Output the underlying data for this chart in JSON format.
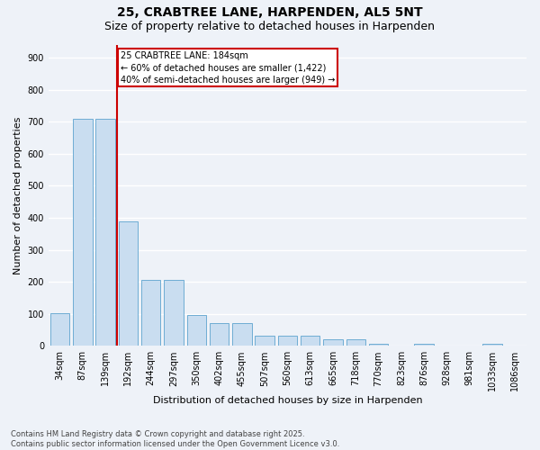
{
  "title1": "25, CRABTREE LANE, HARPENDEN, AL5 5NT",
  "title2": "Size of property relative to detached houses in Harpenden",
  "xlabel": "Distribution of detached houses by size in Harpenden",
  "ylabel": "Number of detached properties",
  "categories": [
    "34sqm",
    "87sqm",
    "139sqm",
    "192sqm",
    "244sqm",
    "297sqm",
    "350sqm",
    "402sqm",
    "455sqm",
    "507sqm",
    "560sqm",
    "613sqm",
    "665sqm",
    "718sqm",
    "770sqm",
    "823sqm",
    "876sqm",
    "928sqm",
    "981sqm",
    "1033sqm",
    "1086sqm"
  ],
  "values": [
    103,
    710,
    710,
    390,
    207,
    207,
    97,
    70,
    70,
    32,
    32,
    32,
    20,
    20,
    7,
    0,
    7,
    0,
    0,
    6,
    0
  ],
  "bar_color": "#c9ddf0",
  "bar_edge_color": "#6eadd4",
  "vline_color": "#cc0000",
  "vline_x": 2.5,
  "annotation_text": "25 CRABTREE LANE: 184sqm\n← 60% of detached houses are smaller (1,422)\n40% of semi-detached houses are larger (949) →",
  "annotation_box_color": "#ffffff",
  "annotation_box_edge_color": "#cc0000",
  "ylim": [
    0,
    940
  ],
  "yticks": [
    0,
    100,
    200,
    300,
    400,
    500,
    600,
    700,
    800,
    900
  ],
  "footer": "Contains HM Land Registry data © Crown copyright and database right 2025.\nContains public sector information licensed under the Open Government Licence v3.0.",
  "bg_color": "#eef2f8",
  "grid_color": "#ffffff",
  "title_fontsize": 10,
  "subtitle_fontsize": 9,
  "tick_fontsize": 7,
  "label_fontsize": 8,
  "footer_fontsize": 6,
  "ann_fontsize": 7
}
